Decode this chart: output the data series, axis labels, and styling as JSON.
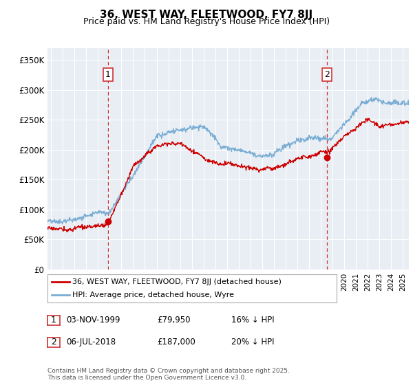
{
  "title": "36, WEST WAY, FLEETWOOD, FY7 8JJ",
  "subtitle": "Price paid vs. HM Land Registry's House Price Index (HPI)",
  "ylabel_ticks": [
    "£0",
    "£50K",
    "£100K",
    "£150K",
    "£200K",
    "£250K",
    "£300K",
    "£350K"
  ],
  "ytick_values": [
    0,
    50000,
    100000,
    150000,
    200000,
    250000,
    300000,
    350000
  ],
  "ylim": [
    0,
    370000
  ],
  "xlim_start": 1994.7,
  "xlim_end": 2025.5,
  "marker1_x": 1999.84,
  "marker1_y": 79950,
  "marker2_x": 2018.51,
  "marker2_y": 187000,
  "marker1_label": "1",
  "marker2_label": "2",
  "legend_line1": "36, WEST WAY, FLEETWOOD, FY7 8JJ (detached house)",
  "legend_line2": "HPI: Average price, detached house, Wyre",
  "ann1_date": "03-NOV-1999",
  "ann1_price": "£79,950",
  "ann1_hpi": "16% ↓ HPI",
  "ann2_date": "06-JUL-2018",
  "ann2_price": "£187,000",
  "ann2_hpi": "20% ↓ HPI",
  "footer": "Contains HM Land Registry data © Crown copyright and database right 2025.\nThis data is licensed under the Open Government Licence v3.0.",
  "price_color": "#cc0000",
  "hpi_color": "#7aadd4",
  "bg_color": "#ffffff",
  "plot_bg_color": "#e8eef4",
  "grid_color": "#ffffff",
  "marker_box_color": "#cc3333",
  "marker_dot_color": "#cc0000"
}
